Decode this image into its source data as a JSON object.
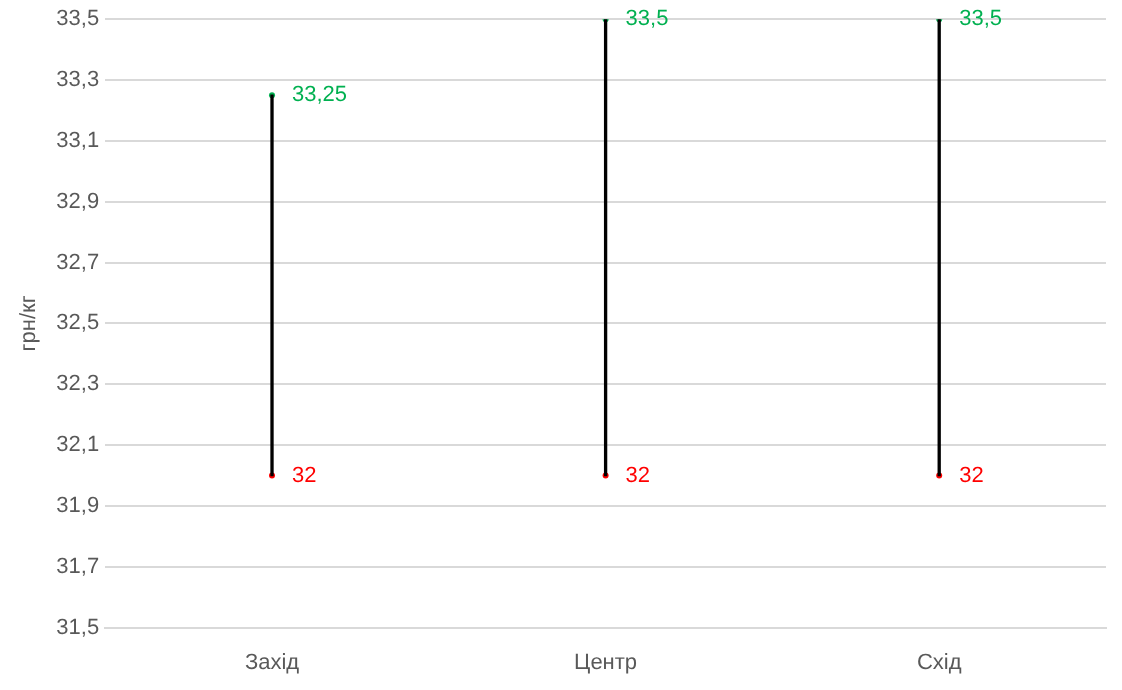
{
  "chart_data": {
    "type": "bar",
    "ylabel": "грн/кг",
    "categories": [
      "Захід",
      "Центр",
      "Схід"
    ],
    "series": [
      {
        "color": "#000000",
        "base": [
          32,
          32,
          32
        ],
        "values": [
          1.25,
          1.5,
          1.5
        ]
      },
      {
        "type": "scatter",
        "color": "#00b050",
        "values": [
          33.25,
          33.5,
          33.5
        ],
        "value_labels": [
          "33,25",
          "33,5",
          "33,5"
        ]
      },
      {
        "type": "scatter",
        "color": "#ff0000",
        "values": [
          32,
          32,
          32
        ],
        "value_labels": [
          "32",
          "32",
          "32"
        ]
      }
    ],
    "ylim": [
      31.5,
      33.5
    ],
    "yticks": [
      {
        "value": 31.5,
        "label": "31,5"
      },
      {
        "value": 31.7,
        "label": "31,7"
      },
      {
        "value": 31.9,
        "label": "31,9"
      },
      {
        "value": 32.1,
        "label": "32,1"
      },
      {
        "value": 32.3,
        "label": "32,3"
      },
      {
        "value": 32.5,
        "label": "32,5"
      },
      {
        "value": 32.7,
        "label": "32,7"
      },
      {
        "value": 32.9,
        "label": "32,9"
      },
      {
        "value": 33.1,
        "label": "33,1"
      },
      {
        "value": 33.3,
        "label": "33,3"
      },
      {
        "value": 33.5,
        "label": "33,5"
      }
    ],
    "grid": "y",
    "legend": false
  }
}
